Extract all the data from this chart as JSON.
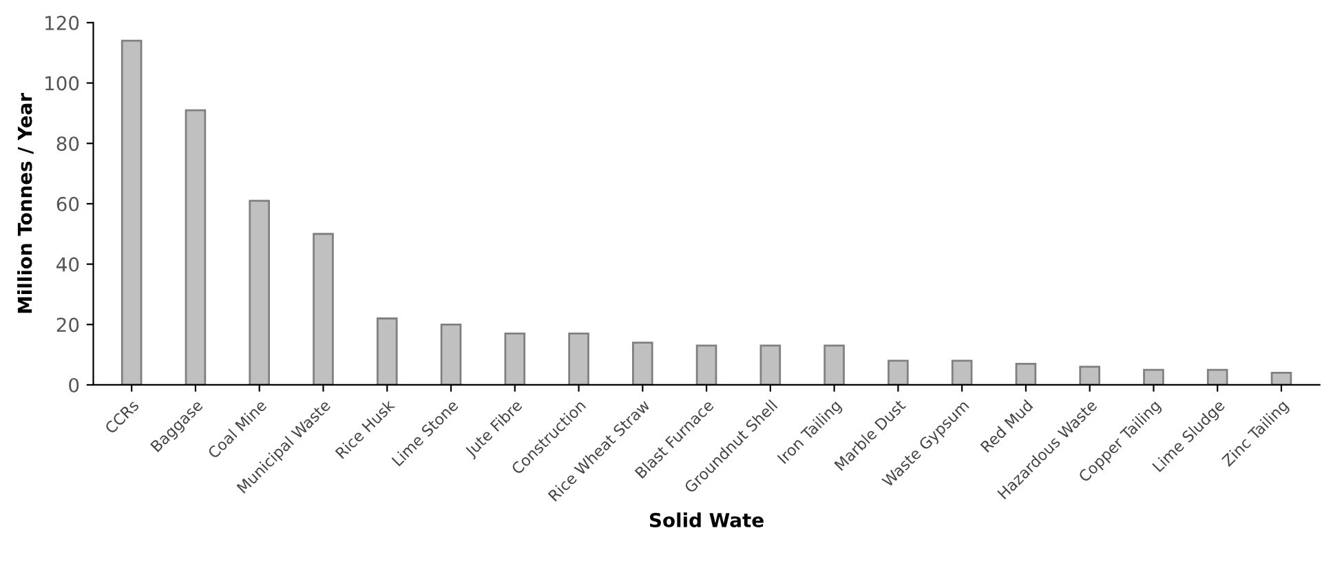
{
  "chart_data": {
    "type": "bar",
    "xlabel": "Solid Wate",
    "ylabel": "Million Tonnes / Year",
    "categories": [
      "CCRs",
      "Baggase",
      "Coal Mine",
      "Municipal Waste",
      "Rice Husk",
      "Lime Stone",
      "Jute Fibre",
      "Construction",
      "Rice Wheat Straw",
      "Blast Furnace",
      "Groundnut Shell",
      "Iron Tailing",
      "Marble Dust",
      "Waste Gypsum",
      "Red Mud",
      "Hazardous Waste",
      "Copper Tailing",
      "Lime Sludge",
      "Zinc Tailing"
    ],
    "values": [
      114,
      91,
      61,
      50,
      22,
      20,
      17,
      17,
      14,
      13,
      13,
      13,
      8,
      8,
      7,
      6,
      5,
      5,
      4
    ],
    "color": "#c0c0c0",
    "ylim": [
      0,
      120
    ],
    "yticks": [
      0,
      20,
      40,
      60,
      80,
      100,
      120
    ],
    "grid": false
  }
}
